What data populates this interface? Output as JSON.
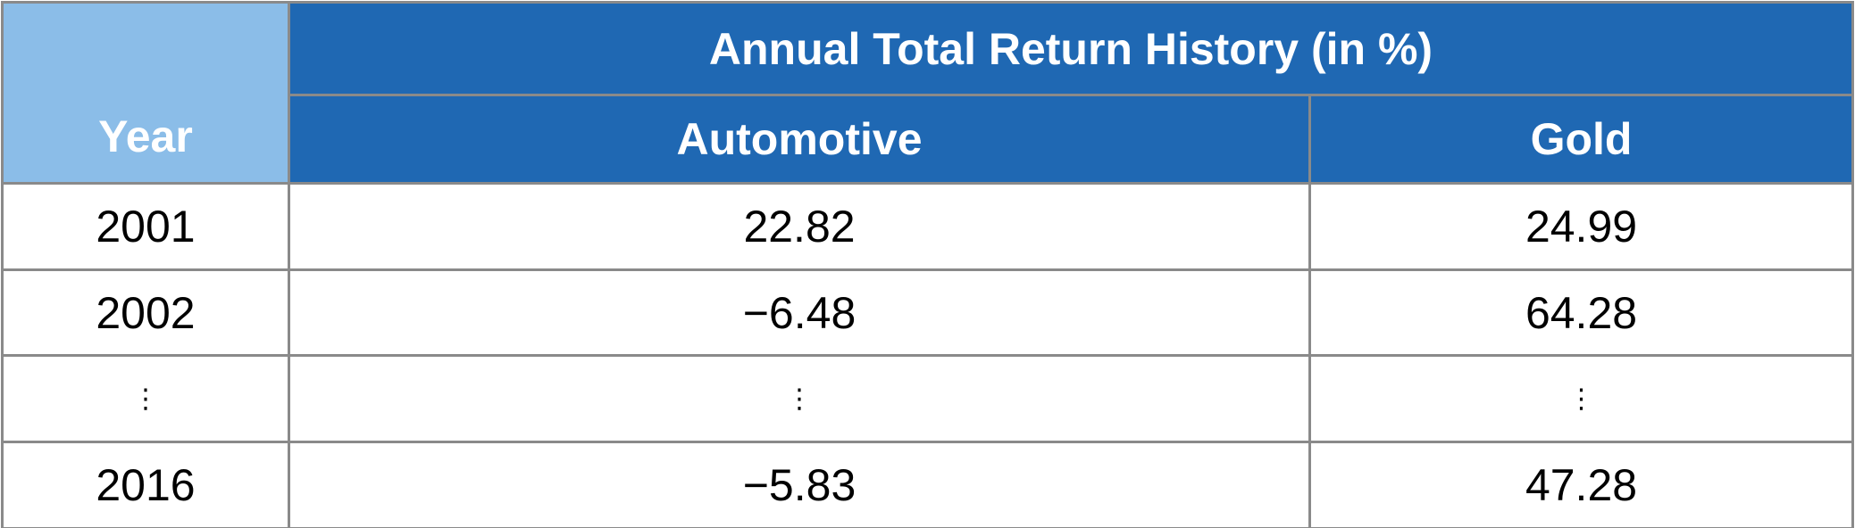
{
  "header": {
    "title": "Annual Total Return History (in %)",
    "columns": [
      "Year",
      "Automotive",
      "Gold"
    ]
  },
  "table": {
    "rows": [
      [
        "2001",
        "22.82",
        "24.99"
      ],
      [
        "2002",
        "−6.48",
        "64.28"
      ],
      [
        "⋮",
        "⋮",
        "⋮"
      ],
      [
        "2016",
        "−5.83",
        "47.28"
      ]
    ]
  }
}
